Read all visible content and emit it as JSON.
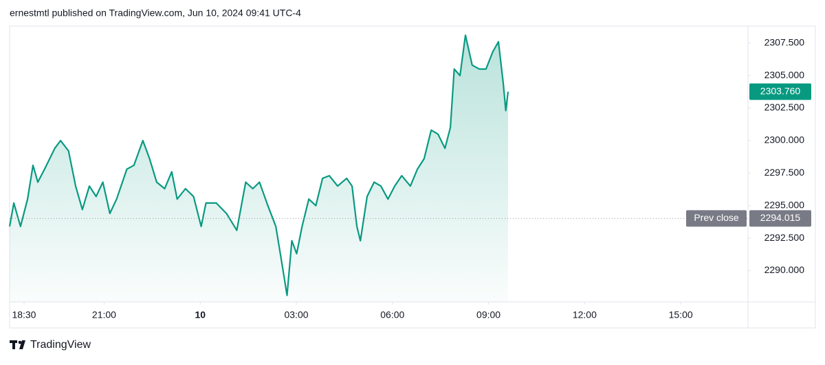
{
  "chart_data": {
    "type": "area",
    "header": "ernestmtl published on TradingView.com, Jun 10, 2024 09:41 UTC-4",
    "brand": "TradingView",
    "color": "#089981",
    "grid": false,
    "xlim": [
      18.05,
      41.1
    ],
    "xticks": [
      {
        "value": 18.5,
        "label": "18:30"
      },
      {
        "value": 21,
        "label": "21:00"
      },
      {
        "value": 24,
        "label": "10"
      },
      {
        "value": 27,
        "label": "03:00"
      },
      {
        "value": 30,
        "label": "06:00"
      },
      {
        "value": 33,
        "label": "09:00"
      },
      {
        "value": 36,
        "label": "12:00"
      },
      {
        "value": 39,
        "label": "15:00"
      }
    ],
    "ylim": [
      2287.6,
      2308.8
    ],
    "yticks": [
      {
        "value": 2290,
        "label": "2290.000"
      },
      {
        "value": 2292.5,
        "label": "2292.500"
      },
      {
        "value": 2295,
        "label": "2295.000"
      },
      {
        "value": 2297.5,
        "label": "2297.500"
      },
      {
        "value": 2300,
        "label": "2300.000"
      },
      {
        "value": 2302.5,
        "label": "2302.500"
      },
      {
        "value": 2305,
        "label": "2305.000"
      },
      {
        "value": 2307.5,
        "label": "2307.500"
      }
    ],
    "prev_close": {
      "name": "Prev close",
      "value": 2294.015,
      "label": "2294.015"
    },
    "last_price": {
      "value": 2303.76,
      "label": "2303.760"
    },
    "x": [
      18.05,
      18.18,
      18.39,
      18.61,
      18.78,
      18.93,
      19.14,
      19.46,
      19.64,
      19.89,
      20.11,
      20.32,
      20.54,
      20.75,
      20.96,
      21.18,
      21.39,
      21.71,
      21.93,
      22.21,
      22.42,
      22.64,
      22.89,
      23.11,
      23.28,
      23.54,
      23.79,
      24.03,
      24.18,
      24.5,
      24.82,
      25.14,
      25.42,
      25.64,
      25.85,
      26.11,
      26.36,
      26.54,
      26.71,
      26.86,
      27.01,
      27.18,
      27.39,
      27.61,
      27.82,
      28.03,
      28.29,
      28.57,
      28.74,
      28.89,
      29.0,
      29.21,
      29.43,
      29.64,
      29.86,
      30.07,
      30.29,
      30.56,
      30.78,
      30.99,
      31.21,
      31.42,
      31.64,
      31.81,
      31.93,
      32.11,
      32.28,
      32.49,
      32.71,
      32.92,
      33.13,
      33.31,
      33.46,
      33.54,
      33.61
    ],
    "values": [
      2293.4,
      2295.2,
      2293.4,
      2295.5,
      2298.1,
      2296.8,
      2297.8,
      2299.4,
      2300.0,
      2299.2,
      2296.5,
      2294.7,
      2296.5,
      2295.7,
      2296.8,
      2294.4,
      2295.5,
      2297.8,
      2298.1,
      2300.0,
      2298.6,
      2296.8,
      2296.3,
      2297.6,
      2295.5,
      2296.3,
      2295.7,
      2293.4,
      2295.2,
      2295.2,
      2294.4,
      2293.1,
      2296.8,
      2296.3,
      2296.8,
      2295.0,
      2293.4,
      2290.7,
      2288.1,
      2292.3,
      2291.3,
      2293.4,
      2295.5,
      2295.0,
      2297.1,
      2297.3,
      2296.5,
      2297.1,
      2296.5,
      2293.4,
      2292.3,
      2295.7,
      2296.8,
      2296.5,
      2295.5,
      2296.5,
      2297.3,
      2296.5,
      2297.8,
      2298.6,
      2300.8,
      2300.5,
      2299.4,
      2301.0,
      2305.5,
      2305.0,
      2308.1,
      2305.8,
      2305.5,
      2305.5,
      2306.8,
      2307.6,
      2304.4,
      2302.3,
      2303.76
    ]
  }
}
